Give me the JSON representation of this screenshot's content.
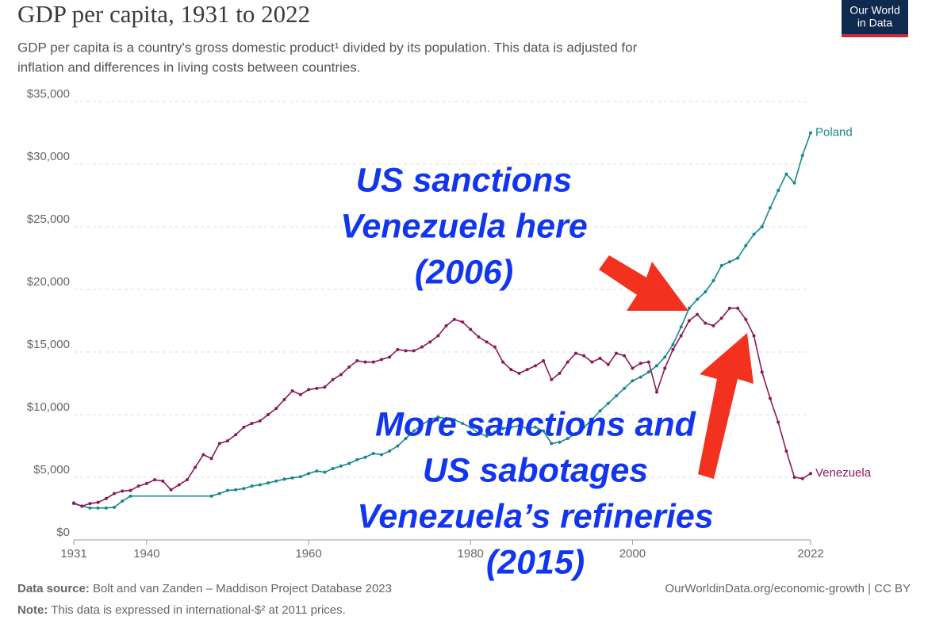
{
  "chart_data": {
    "type": "line",
    "title": "GDP per capita, 1931 to 2022",
    "subtitle": [
      "GDP per capita is a country's gross domestic product¹ divided by its population. This data is adjusted for",
      "inflation and differences in living costs between countries."
    ],
    "logo": [
      "Our World",
      "in Data"
    ],
    "source_label": "Data source:",
    "source": "Bolt and van Zanden – Maddison Project Database 2023",
    "note_label": "Note:",
    "note": "This data is expressed in international-$² at 2011 prices.",
    "credit": "OurWorldinData.org/economic-growth | CC BY",
    "annotations": [
      {
        "lines": [
          "US sanctions",
          "Venezuela here",
          "(2006)"
        ]
      },
      {
        "lines": [
          "More sanctions and",
          "US sabotages",
          "Venezuela’s refineries",
          "(2015)"
        ]
      }
    ],
    "xlim": [
      1931,
      2022
    ],
    "xticks": [
      1931,
      1940,
      1960,
      1980,
      2000,
      2022
    ],
    "ylim": [
      0,
      35000
    ],
    "yticks": [
      {
        "value": 0,
        "label": "$0"
      },
      {
        "value": 5000,
        "label": "$5,000"
      },
      {
        "value": 10000,
        "label": "$10,000"
      },
      {
        "value": 15000,
        "label": "$15,000"
      },
      {
        "value": 20000,
        "label": "$20,000"
      },
      {
        "value": 25000,
        "label": "$25,000"
      },
      {
        "value": 30000,
        "label": "$30,000"
      },
      {
        "value": 35000,
        "label": "$35,000"
      }
    ],
    "grid": true,
    "series": [
      {
        "name": "Poland",
        "color": "#18878f",
        "x": [
          1931,
          1932,
          1933,
          1934,
          1935,
          1936,
          1937,
          1938,
          1948,
          1949,
          1950,
          1951,
          1952,
          1953,
          1954,
          1955,
          1956,
          1957,
          1958,
          1959,
          1960,
          1961,
          1962,
          1963,
          1964,
          1965,
          1966,
          1967,
          1968,
          1969,
          1970,
          1971,
          1972,
          1973,
          1974,
          1975,
          1976,
          1977,
          1978,
          1979,
          1980,
          1981,
          1982,
          1983,
          1984,
          1985,
          1986,
          1987,
          1988,
          1989,
          1990,
          1991,
          1992,
          1993,
          1994,
          1995,
          1996,
          1997,
          1998,
          1999,
          2000,
          2001,
          2002,
          2003,
          2004,
          2005,
          2006,
          2007,
          2008,
          2009,
          2010,
          2011,
          2012,
          2013,
          2014,
          2015,
          2016,
          2017,
          2018,
          2019,
          2020,
          2021,
          2022
        ],
        "values": [
          2900,
          2700,
          2550,
          2550,
          2550,
          2600,
          3100,
          3500,
          3500,
          3700,
          3950,
          4000,
          4100,
          4300,
          4400,
          4550,
          4700,
          4850,
          4950,
          5050,
          5300,
          5500,
          5400,
          5700,
          5900,
          6100,
          6400,
          6600,
          6900,
          6800,
          7100,
          7500,
          8100,
          8700,
          9200,
          9600,
          9800,
          9700,
          9600,
          9300,
          9000,
          8500,
          8300,
          8600,
          8900,
          9000,
          9100,
          8900,
          9000,
          8700,
          7700,
          7800,
          8100,
          8500,
          9000,
          9600,
          10300,
          10900,
          11500,
          12100,
          12700,
          13000,
          13400,
          13900,
          14600,
          15600,
          17000,
          18500,
          19200,
          19800,
          20700,
          21900,
          22200,
          22500,
          23500,
          24400,
          25000,
          26500,
          27900,
          29200,
          28500,
          30700,
          32500
        ]
      },
      {
        "name": "Venezuela",
        "color": "#8a1a5a",
        "x": [
          1931,
          1932,
          1933,
          1934,
          1935,
          1936,
          1937,
          1938,
          1939,
          1940,
          1941,
          1942,
          1943,
          1944,
          1945,
          1946,
          1947,
          1948,
          1949,
          1950,
          1951,
          1952,
          1953,
          1954,
          1955,
          1956,
          1957,
          1958,
          1959,
          1960,
          1961,
          1962,
          1963,
          1964,
          1965,
          1966,
          1967,
          1968,
          1969,
          1970,
          1971,
          1972,
          1973,
          1974,
          1975,
          1976,
          1977,
          1978,
          1979,
          1980,
          1981,
          1982,
          1983,
          1984,
          1985,
          1986,
          1987,
          1988,
          1989,
          1990,
          1991,
          1992,
          1993,
          1994,
          1995,
          1996,
          1997,
          1998,
          1999,
          2000,
          2001,
          2002,
          2003,
          2004,
          2005,
          2006,
          2007,
          2008,
          2009,
          2010,
          2011,
          2012,
          2013,
          2014,
          2015,
          2016,
          2017,
          2018,
          2019,
          2020,
          2021,
          2022
        ],
        "values": [
          2950,
          2700,
          2900,
          3000,
          3300,
          3700,
          3900,
          3950,
          4300,
          4500,
          4800,
          4700,
          4000,
          4400,
          4800,
          5800,
          6800,
          6500,
          7700,
          7900,
          8400,
          9000,
          9300,
          9500,
          10000,
          10500,
          11200,
          11900,
          11600,
          12000,
          12100,
          12200,
          12800,
          13200,
          13800,
          14300,
          14200,
          14200,
          14400,
          14600,
          15200,
          15100,
          15100,
          15400,
          15800,
          16300,
          17100,
          17600,
          17400,
          16800,
          16200,
          15800,
          15400,
          14200,
          13600,
          13300,
          13600,
          13900,
          14300,
          12800,
          13300,
          14200,
          14900,
          14700,
          14200,
          14500,
          14000,
          14900,
          14700,
          13700,
          14100,
          14200,
          11800,
          13700,
          15200,
          16300,
          17500,
          18000,
          17300,
          17100,
          17700,
          18500,
          18500,
          17600,
          16300,
          13400,
          11300,
          9400,
          7100,
          5000,
          4900,
          5300
        ]
      }
    ]
  }
}
